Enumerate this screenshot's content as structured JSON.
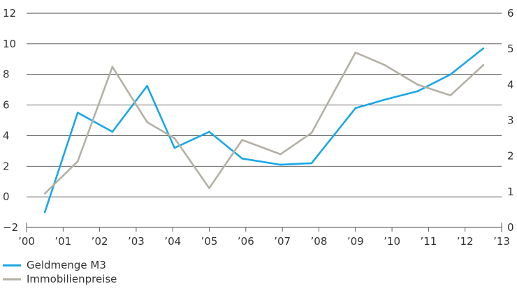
{
  "chart_data": {
    "type": "line",
    "title": "",
    "xlabel": "",
    "ylabel": "",
    "x_tick_labels": [
      "’00",
      "’01",
      "’02",
      "’03",
      "’04",
      "’05",
      "’06",
      "’07",
      "’08",
      "’09",
      "’10",
      "’11",
      "’12",
      "’13"
    ],
    "x_range": [
      2000,
      2013
    ],
    "y_left": {
      "range": [
        -2,
        12
      ],
      "ticks": [
        "−2",
        "0",
        "2",
        "4",
        "6",
        "8",
        "10",
        "12"
      ]
    },
    "y_right": {
      "range": [
        0,
        6
      ],
      "ticks": [
        "0",
        "1",
        "2",
        "3",
        "4",
        "5",
        "6"
      ]
    },
    "grid": "horizontal",
    "legend_position": "bottom-left",
    "series": [
      {
        "name": "Geldmenge M3",
        "axis": "left",
        "color": "#1aa7e6",
        "x": [
          2000.5,
          2001.4,
          2002.35,
          2003.3,
          2004.05,
          2005.0,
          2005.9,
          2006.95,
          2007.8,
          2009.0,
          2009.8,
          2010.7,
          2011.6,
          2012.5
        ],
        "y": [
          -1.0,
          5.5,
          4.25,
          7.25,
          3.2,
          4.25,
          2.5,
          2.1,
          2.2,
          5.8,
          6.35,
          6.9,
          8.0,
          9.7
        ]
      },
      {
        "name": "Immobilienpreise",
        "axis": "right",
        "color": "#b4b0a6",
        "x": [
          2000.5,
          2001.4,
          2002.35,
          2003.3,
          2004.05,
          2005.0,
          2005.9,
          2006.95,
          2007.8,
          2009.0,
          2009.8,
          2010.7,
          2011.6,
          2012.5
        ],
        "y": [
          0.95,
          1.85,
          4.5,
          2.95,
          2.5,
          1.1,
          2.45,
          2.05,
          2.65,
          4.9,
          4.55,
          4.0,
          3.7,
          4.55
        ]
      }
    ]
  }
}
